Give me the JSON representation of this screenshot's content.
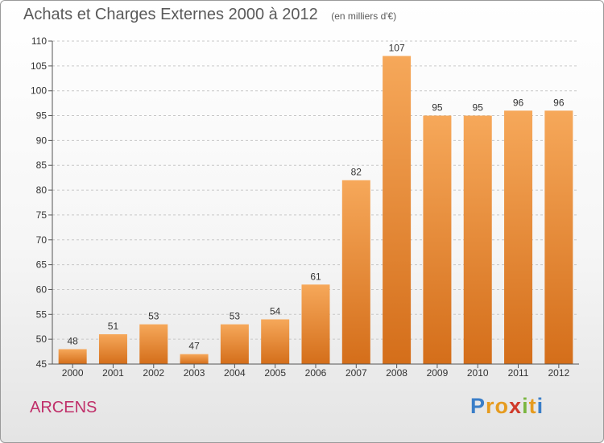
{
  "title": "Achats et Charges Externes 2000 à 2012",
  "subtitle": "(en milliers d'€)",
  "commune": "ARCENS",
  "brand": {
    "letters": [
      "P",
      "r",
      "o",
      "x",
      "i",
      "t",
      "i"
    ],
    "colors": [
      "#3a7ec8",
      "#e69b1e",
      "#e69b1e",
      "#d03a2a",
      "#7ab640",
      "#e69b1e",
      "#3a7ec8"
    ]
  },
  "colors": {
    "bar_light": "#f6a85a",
    "bar_dark": "#d46e1a",
    "axis_text": "#333333",
    "grid": "#c8c8c8",
    "axis": "#555555"
  },
  "chart_data": {
    "type": "bar",
    "title": "Achats et Charges Externes 2000 à 2012",
    "subtitle": "(en milliers d'€)",
    "categories": [
      "2000",
      "2001",
      "2002",
      "2003",
      "2004",
      "2005",
      "2006",
      "2007",
      "2008",
      "2009",
      "2010",
      "2011",
      "2012"
    ],
    "values": [
      48,
      51,
      53,
      47,
      53,
      54,
      61,
      82,
      107,
      95,
      95,
      96,
      96
    ],
    "ylim": [
      45,
      110
    ],
    "yticks": [
      45,
      50,
      55,
      60,
      65,
      70,
      75,
      80,
      85,
      90,
      95,
      100,
      105,
      110
    ],
    "grid": true,
    "data_labels": true
  }
}
